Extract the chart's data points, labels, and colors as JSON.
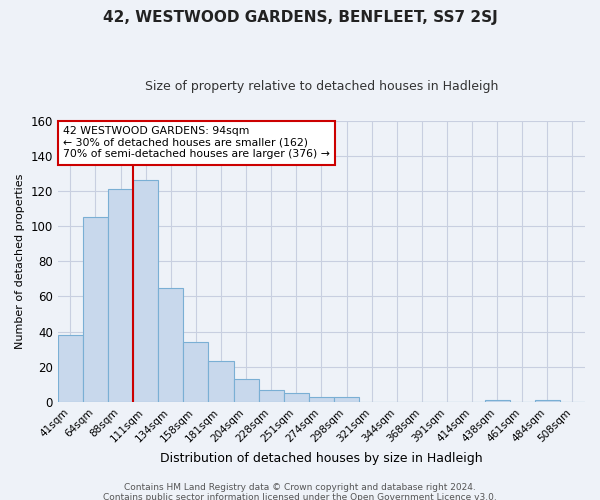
{
  "title": "42, WESTWOOD GARDENS, BENFLEET, SS7 2SJ",
  "subtitle": "Size of property relative to detached houses in Hadleigh",
  "xlabel": "Distribution of detached houses by size in Hadleigh",
  "ylabel": "Number of detached properties",
  "bar_labels": [
    "41sqm",
    "64sqm",
    "88sqm",
    "111sqm",
    "134sqm",
    "158sqm",
    "181sqm",
    "204sqm",
    "228sqm",
    "251sqm",
    "274sqm",
    "298sqm",
    "321sqm",
    "344sqm",
    "368sqm",
    "391sqm",
    "414sqm",
    "438sqm",
    "461sqm",
    "484sqm",
    "508sqm"
  ],
  "bar_values": [
    38,
    105,
    121,
    126,
    65,
    34,
    23,
    13,
    7,
    5,
    3,
    3,
    0,
    0,
    0,
    0,
    0,
    1,
    0,
    1,
    0
  ],
  "bar_color": "#c8d8ec",
  "bar_edge_color": "#7aafd4",
  "vline_color": "#cc0000",
  "vline_pos": 2.5,
  "ylim": [
    0,
    160
  ],
  "yticks": [
    0,
    20,
    40,
    60,
    80,
    100,
    120,
    140,
    160
  ],
  "annotation_text": "42 WESTWOOD GARDENS: 94sqm\n← 30% of detached houses are smaller (162)\n70% of semi-detached houses are larger (376) →",
  "annotation_box_facecolor": "#ffffff",
  "annotation_box_edgecolor": "#cc0000",
  "footer_line1": "Contains HM Land Registry data © Crown copyright and database right 2024.",
  "footer_line2": "Contains public sector information licensed under the Open Government Licence v3.0.",
  "fig_facecolor": "#eef2f8",
  "plot_facecolor": "#eef2f8",
  "grid_color": "#c8cfe0"
}
